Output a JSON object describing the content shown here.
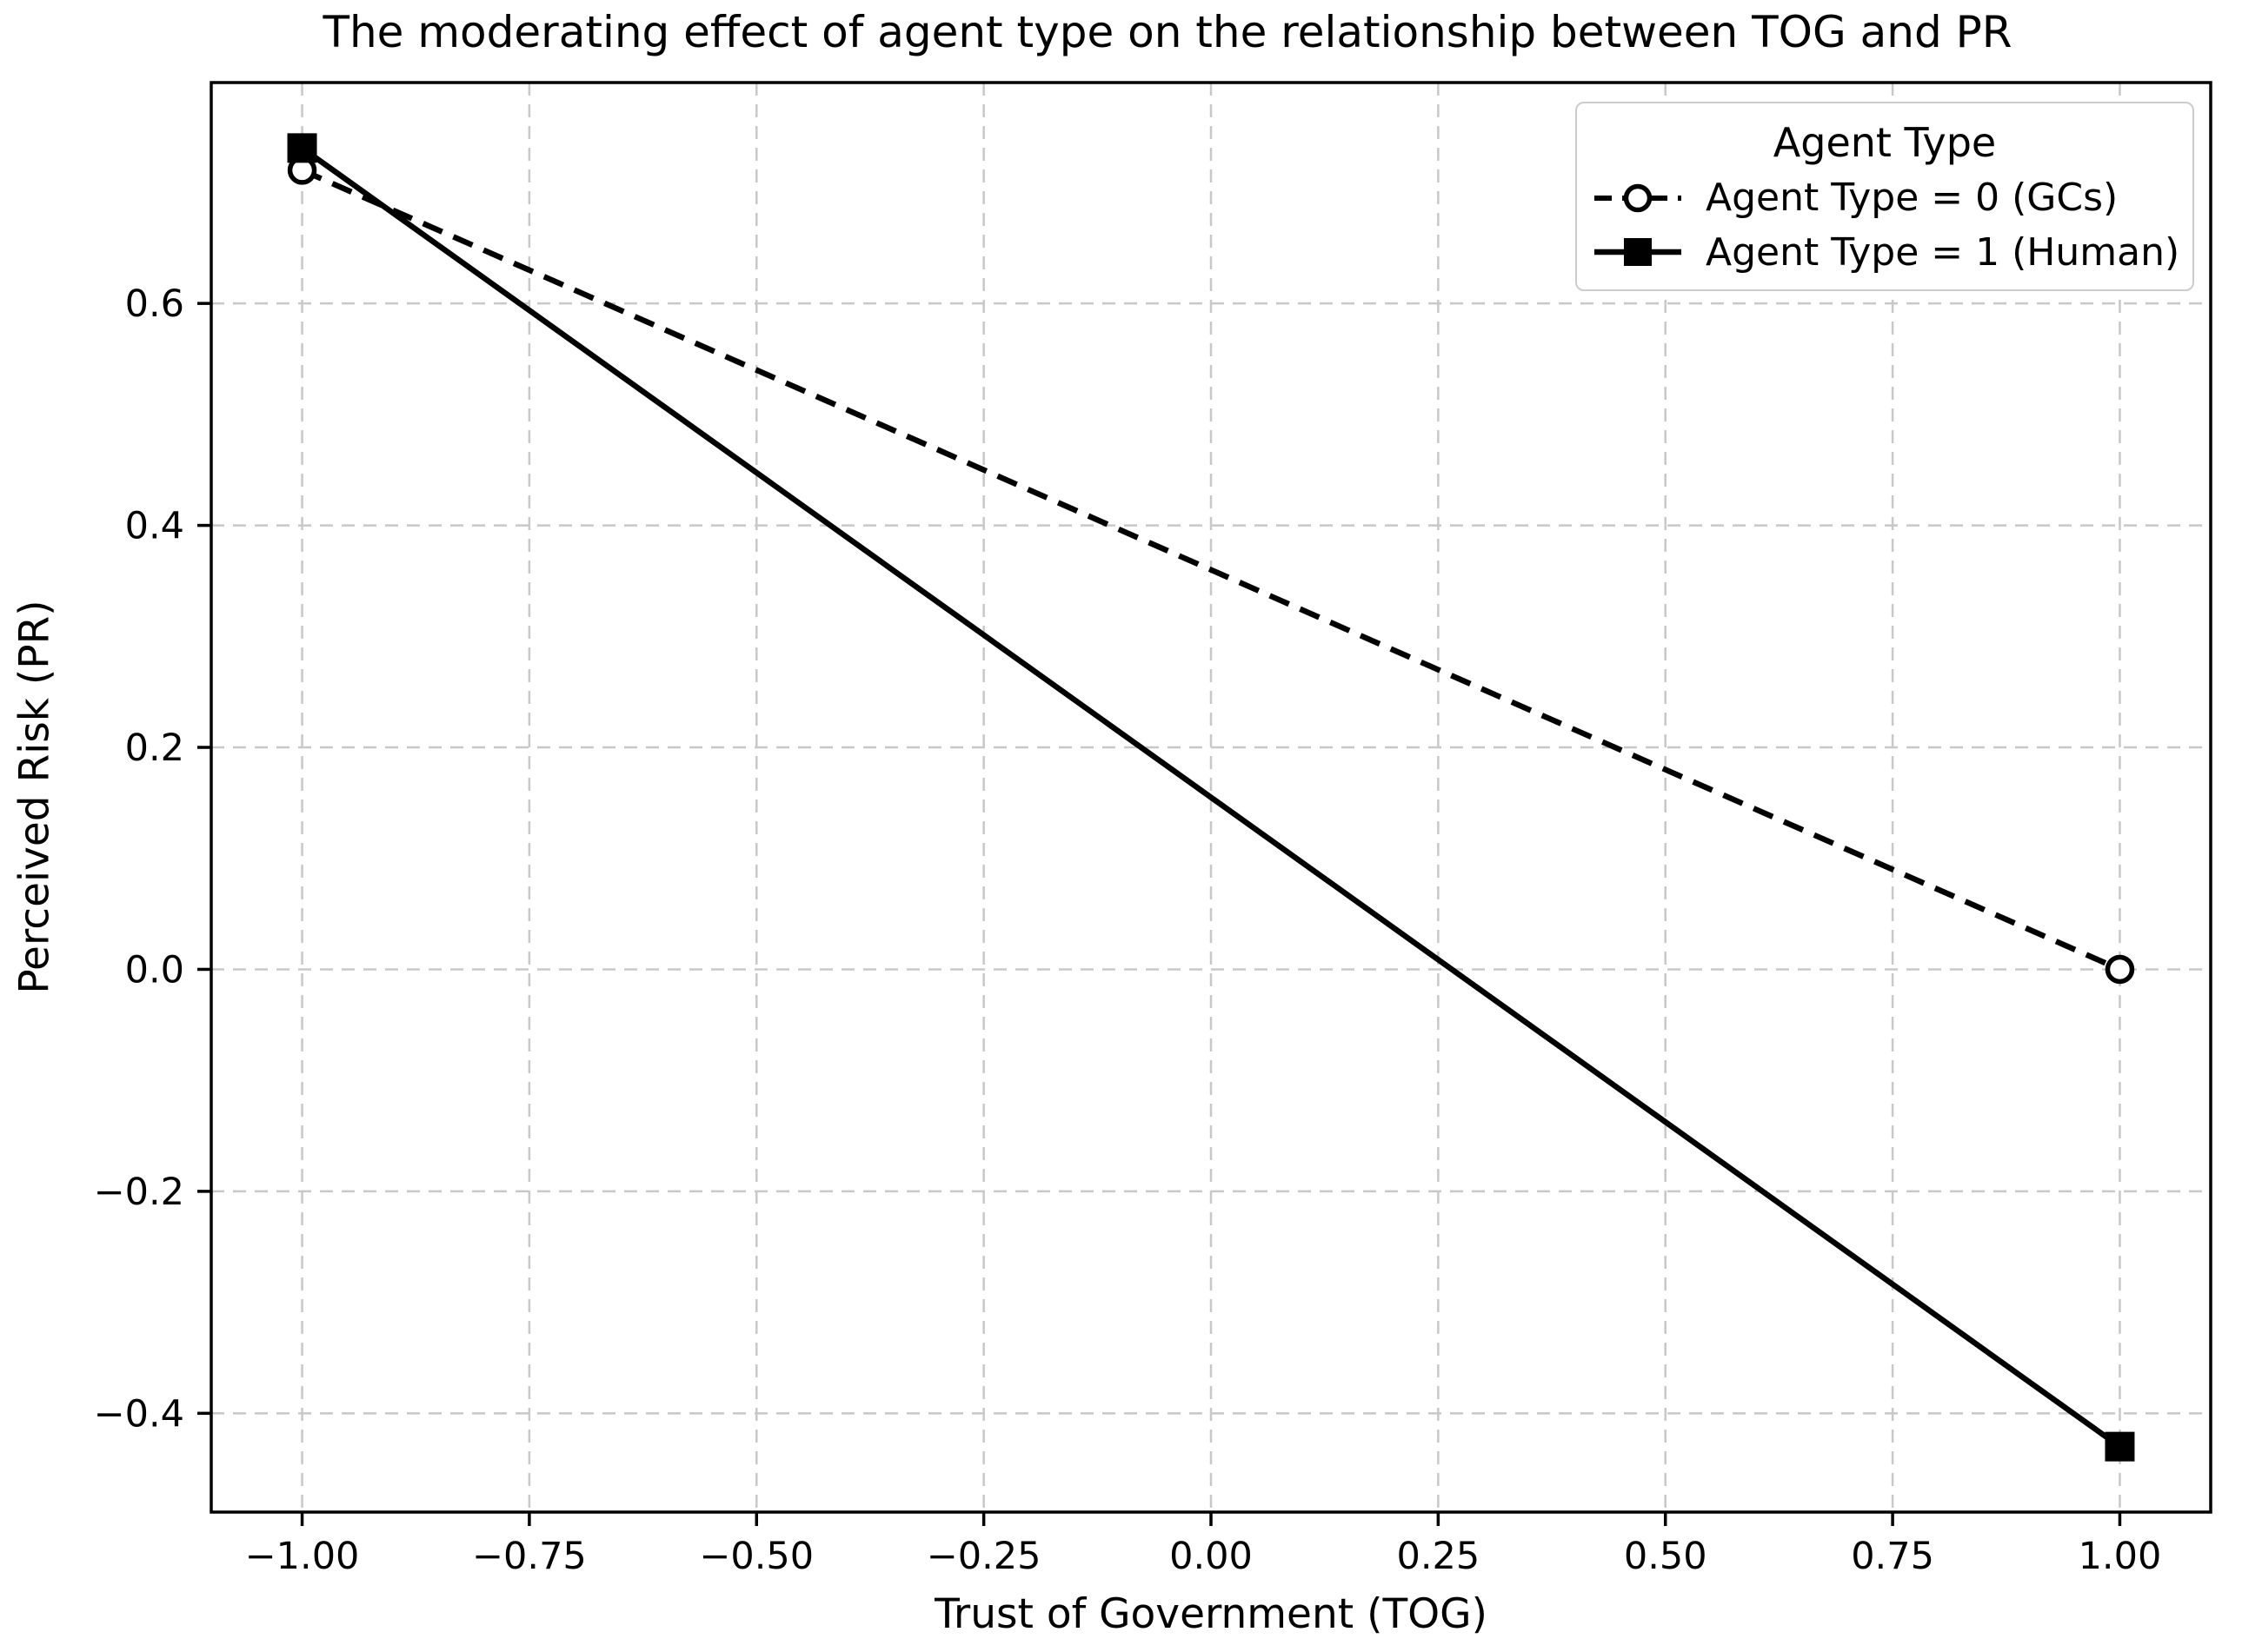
{
  "chart_data": {
    "type": "line",
    "title": "The moderating effect of agent type on the relationship between TOG and PR",
    "xlabel": "Trust of Government (TOG)",
    "ylabel": "Perceived Risk (PR)",
    "xlim": [
      -1.1,
      1.1
    ],
    "ylim": [
      -0.489,
      0.799
    ],
    "x_ticks": {
      "values": [
        -1.0,
        -0.75,
        -0.5,
        -0.25,
        0.0,
        0.25,
        0.5,
        0.75,
        1.0
      ],
      "labels": [
        "−1.00",
        "−0.75",
        "−0.50",
        "−0.25",
        "0.00",
        "0.25",
        "0.50",
        "0.75",
        "1.00"
      ]
    },
    "y_ticks": {
      "values": [
        -0.4,
        -0.2,
        0.0,
        0.2,
        0.4,
        0.6
      ],
      "labels": [
        "−0.4",
        "−0.2",
        "0.0",
        "0.2",
        "0.4",
        "0.6"
      ]
    },
    "grid": true,
    "legend": {
      "title": "Agent Type",
      "position": "upper right",
      "entries": [
        {
          "label": "Agent Type = 0 (GCs)",
          "line": "dashed",
          "marker": "open-circle"
        },
        {
          "label": "Agent Type = 1 (Human)",
          "line": "solid",
          "marker": "filled-square"
        }
      ]
    },
    "series": [
      {
        "name": "Agent Type = 0 (GCs)",
        "x": [
          -1.0,
          1.0
        ],
        "y": [
          0.72,
          0.0
        ],
        "line_style": "dashed",
        "marker": "open-circle",
        "color": "#000000"
      },
      {
        "name": "Agent Type = 1 (Human)",
        "x": [
          -1.0,
          1.0
        ],
        "y": [
          0.74,
          -0.43
        ],
        "line_style": "solid",
        "marker": "filled-square",
        "color": "#000000"
      }
    ]
  },
  "colors": {
    "background": "#ffffff",
    "spine": "#000000",
    "grid": "#c8c8c8",
    "tick": "#000000",
    "legend_border": "#cccccc",
    "series": "#000000"
  }
}
